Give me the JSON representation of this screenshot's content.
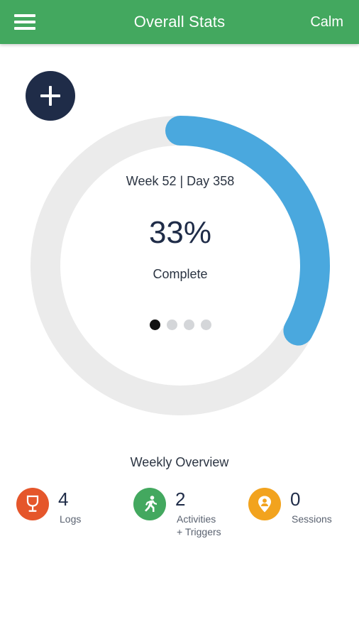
{
  "header": {
    "title": "Overall Stats",
    "mood": "Calm",
    "color": "#43a85f"
  },
  "fab": {
    "icon": "plus-icon",
    "color": "#1f2c48"
  },
  "progress": {
    "week_day": "Week 52 | Day 358",
    "percent_label": "33%",
    "value": 0.33,
    "complete_label": "Complete",
    "track_color": "#ebebeb",
    "fill_color": "#4aa8de",
    "pager": {
      "count": 4,
      "active_index": 0
    }
  },
  "weekly": {
    "title": "Weekly Overview",
    "stats": [
      {
        "count": "4",
        "label": "Logs",
        "icon": "wine-glass-icon",
        "color": "#e5562b"
      },
      {
        "count": "2",
        "label_line1": "Activities",
        "label_line2": "+ Triggers",
        "icon": "running-person-icon",
        "color": "#43a85f"
      },
      {
        "count": "0",
        "label": "Sessions",
        "icon": "person-pin-icon",
        "color": "#f2a31e"
      }
    ]
  }
}
